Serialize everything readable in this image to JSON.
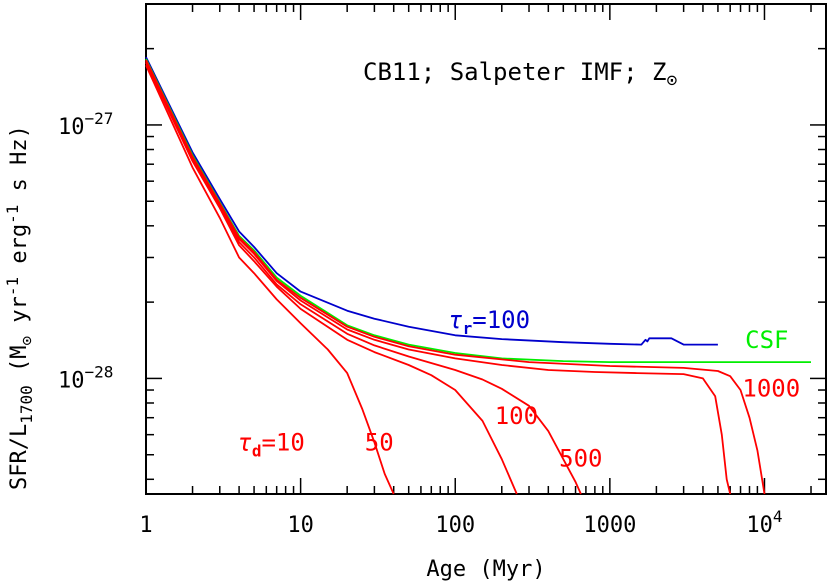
{
  "chart_data": {
    "type": "line",
    "title": "CB11; Salpeter IMF; Z",
    "title_symbol": "⊙",
    "xlabel": "Age (Myr)",
    "ylabel": {
      "a": "SFR/L",
      "a_sub": "1700",
      "b": " (M",
      "b_sub": "⊙",
      "c": " yr",
      "c_sup": "-1",
      "d": " erg",
      "d_sup": "-1",
      "e": " s Hz)"
    },
    "x_scale": "log",
    "y_scale": "log",
    "xlim": [
      1,
      25000
    ],
    "ylim": [
      3.5e-29,
      3e-27
    ],
    "x_ticklabels": [
      {
        "x": 1,
        "text": "1"
      },
      {
        "x": 10,
        "text": "10"
      },
      {
        "x": 100,
        "text": "100"
      },
      {
        "x": 1000,
        "text": "1000"
      },
      {
        "x": 10000,
        "text": "10",
        "sup": "4"
      }
    ],
    "y_ticklabels": [
      {
        "y": 1e-27,
        "text": "10",
        "sup": "−27"
      },
      {
        "y": 1e-28,
        "text": "10",
        "sup": "−28"
      }
    ],
    "colors": {
      "tau_d": "#ff0000",
      "tau_r": "#0000cc",
      "csf": "#00ee00"
    },
    "series": [
      {
        "name": "τr=100",
        "kind": "tau_r",
        "label": {
          "tau": "τ",
          "sub": "r",
          "text": "=100"
        },
        "points": [
          [
            1,
            1.85e-27
          ],
          [
            2,
            7.8e-28
          ],
          [
            3,
            5.1e-28
          ],
          [
            4,
            3.8e-28
          ],
          [
            5,
            3.3e-28
          ],
          [
            7,
            2.6e-28
          ],
          [
            10,
            2.2e-28
          ],
          [
            20,
            1.85e-28
          ],
          [
            30,
            1.72e-28
          ],
          [
            50,
            1.6e-28
          ],
          [
            100,
            1.48e-28
          ],
          [
            200,
            1.43e-28
          ],
          [
            500,
            1.39e-28
          ],
          [
            1000,
            1.37e-28
          ],
          [
            1600,
            1.36e-28
          ],
          [
            1700,
            1.42e-28
          ],
          [
            1750,
            1.4e-28
          ],
          [
            1800,
            1.44e-28
          ],
          [
            2500,
            1.44e-28
          ],
          [
            3000,
            1.36e-28
          ],
          [
            5000,
            1.36e-28
          ]
        ]
      },
      {
        "name": "CSF",
        "kind": "csf",
        "label": {
          "text": "CSF"
        },
        "points": [
          [
            1,
            1.82e-27
          ],
          [
            2,
            7.6e-28
          ],
          [
            3,
            4.95e-28
          ],
          [
            4,
            3.65e-28
          ],
          [
            5,
            3.2e-28
          ],
          [
            7,
            2.5e-28
          ],
          [
            10,
            2.12e-28
          ],
          [
            20,
            1.62e-28
          ],
          [
            30,
            1.48e-28
          ],
          [
            50,
            1.36e-28
          ],
          [
            100,
            1.26e-28
          ],
          [
            200,
            1.2e-28
          ],
          [
            500,
            1.17e-28
          ],
          [
            1000,
            1.16e-28
          ],
          [
            5000,
            1.16e-28
          ],
          [
            20000,
            1.16e-28
          ]
        ]
      },
      {
        "name": "τd=1000",
        "kind": "tau_d",
        "label": {
          "text": "1000"
        },
        "points": [
          [
            1,
            1.8e-27
          ],
          [
            2,
            7.5e-28
          ],
          [
            3,
            4.9e-28
          ],
          [
            4,
            3.6e-28
          ],
          [
            5,
            3.15e-28
          ],
          [
            7,
            2.45e-28
          ],
          [
            10,
            2.08e-28
          ],
          [
            20,
            1.6e-28
          ],
          [
            30,
            1.46e-28
          ],
          [
            50,
            1.34e-28
          ],
          [
            100,
            1.24e-28
          ],
          [
            300,
            1.16e-28
          ],
          [
            1000,
            1.12e-28
          ],
          [
            3000,
            1.1e-28
          ],
          [
            5000,
            1.07e-28
          ],
          [
            6000,
            1.02e-28
          ],
          [
            7000,
            9e-29
          ],
          [
            8000,
            7e-29
          ],
          [
            9000,
            5.2e-29
          ],
          [
            10000,
            3.5e-29
          ]
        ]
      },
      {
        "name": "τd=500",
        "kind": "tau_d",
        "label": {
          "text": "500"
        },
        "points": [
          [
            1,
            1.8e-27
          ],
          [
            2,
            7.45e-28
          ],
          [
            3,
            4.85e-28
          ],
          [
            4,
            3.55e-28
          ],
          [
            5,
            3.1e-28
          ],
          [
            7,
            2.42e-28
          ],
          [
            10,
            2.03e-28
          ],
          [
            20,
            1.56e-28
          ],
          [
            30,
            1.42e-28
          ],
          [
            50,
            1.3e-28
          ],
          [
            100,
            1.2e-28
          ],
          [
            200,
            1.13e-28
          ],
          [
            400,
            1.08e-28
          ],
          [
            800,
            1.06e-28
          ],
          [
            1500,
            1.05e-28
          ],
          [
            3000,
            1.04e-28
          ],
          [
            4000,
            1e-28
          ],
          [
            4800,
            8.5e-29
          ],
          [
            5300,
            6e-29
          ],
          [
            5700,
            4e-29
          ],
          [
            6000,
            3.5e-29
          ]
        ]
      },
      {
        "name": "τd=100",
        "kind": "tau_d",
        "label": {
          "text": "100"
        },
        "points": [
          [
            1,
            1.78e-27
          ],
          [
            2,
            7.3e-28
          ],
          [
            3,
            4.8e-28
          ],
          [
            4,
            3.45e-28
          ],
          [
            5,
            3e-28
          ],
          [
            7,
            2.35e-28
          ],
          [
            10,
            1.96e-28
          ],
          [
            20,
            1.5e-28
          ],
          [
            30,
            1.35e-28
          ],
          [
            50,
            1.22e-28
          ],
          [
            100,
            1.08e-28
          ],
          [
            150,
            9.9e-29
          ],
          [
            200,
            9.1e-29
          ],
          [
            300,
            7.8e-29
          ],
          [
            400,
            6.2e-29
          ],
          [
            500,
            4.8e-29
          ],
          [
            600,
            3.9e-29
          ],
          [
            650,
            3.5e-29
          ]
        ]
      },
      {
        "name": "τd=50",
        "kind": "tau_d",
        "label": {
          "text": "50"
        },
        "points": [
          [
            1,
            1.76e-27
          ],
          [
            2,
            7.2e-28
          ],
          [
            3,
            4.7e-28
          ],
          [
            4,
            3.35e-28
          ],
          [
            5,
            2.9e-28
          ],
          [
            7,
            2.3e-28
          ],
          [
            10,
            1.88e-28
          ],
          [
            20,
            1.42e-28
          ],
          [
            30,
            1.27e-28
          ],
          [
            50,
            1.13e-28
          ],
          [
            70,
            1.03e-28
          ],
          [
            100,
            9e-29
          ],
          [
            150,
            6.8e-29
          ],
          [
            200,
            4.8e-29
          ],
          [
            250,
            3.5e-29
          ]
        ]
      },
      {
        "name": "τd=10",
        "kind": "tau_d",
        "label": {
          "tau": "τ",
          "sub": "d",
          "text": "=10"
        },
        "points": [
          [
            1,
            1.72e-27
          ],
          [
            2,
            6.8e-28
          ],
          [
            3,
            4.3e-28
          ],
          [
            4,
            3e-28
          ],
          [
            5,
            2.6e-28
          ],
          [
            7,
            2.05e-28
          ],
          [
            10,
            1.65e-28
          ],
          [
            15,
            1.3e-28
          ],
          [
            20,
            1.05e-28
          ],
          [
            25,
            7.6e-29
          ],
          [
            30,
            5.6e-29
          ],
          [
            35,
            4.2e-29
          ],
          [
            40,
            3.5e-29
          ]
        ]
      }
    ]
  }
}
